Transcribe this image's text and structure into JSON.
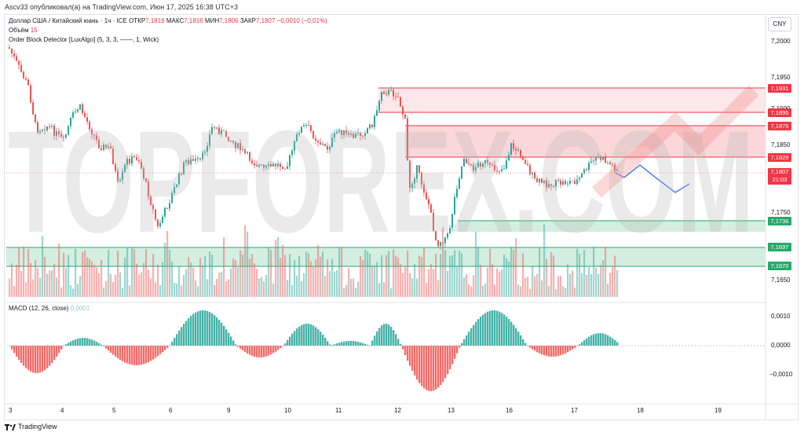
{
  "header": {
    "publish_text": "Ascv33 опубликовал(а) на TradingView.com, Июн 17, 2025 16:38 UTC+3"
  },
  "legend": {
    "symbol_line_prefix": "Доллар США / Китайский юань · 1ч · ICE",
    "ohlc": [
      {
        "label": "ОТКР",
        "value": "7,1816"
      },
      {
        "label": "МАКС",
        "value": "7,1816"
      },
      {
        "label": "МИН",
        "value": "7,1806"
      },
      {
        "label": "ЗАКР",
        "value": "7,1807"
      }
    ],
    "change": "−0,0010 (−0,01%)",
    "volume_label": "Объём",
    "volume_value": "15",
    "indicator": "Order Block Detector [LuxAlgo] (5, 3, 3, ——, 1, Wick)",
    "macd_label": "MACD (12, 26, close)",
    "macd_value": "0,0001"
  },
  "currency_button": "CNY",
  "price_axis": [
    "7,2000",
    "7,1950",
    "7,1900",
    "7,1850",
    "7,1750",
    "7,1650"
  ],
  "price_tags": {
    "red": [
      "7,1931",
      "7,1895",
      "7,1875",
      "7,1829"
    ],
    "green": [
      "7,1736",
      "7,1697",
      "7,1670"
    ],
    "current_price": "7,1807",
    "countdown": "21:03"
  },
  "macd_axis": [
    "0,0010",
    "0,0000",
    "−0,0010"
  ],
  "date_axis": [
    "3",
    "4",
    "5",
    "6",
    "9",
    "10",
    "11",
    "12",
    "13",
    "16",
    "17",
    "18",
    "19"
  ],
  "watermark_text": "TOPFOREX.COM",
  "footer": {
    "brand": "TradingView"
  },
  "colors": {
    "up": "#26a69a",
    "down": "#ef5350",
    "bear_zone": "#f23645",
    "bull_zone": "#26a96c",
    "projection": "#2962ff"
  }
}
